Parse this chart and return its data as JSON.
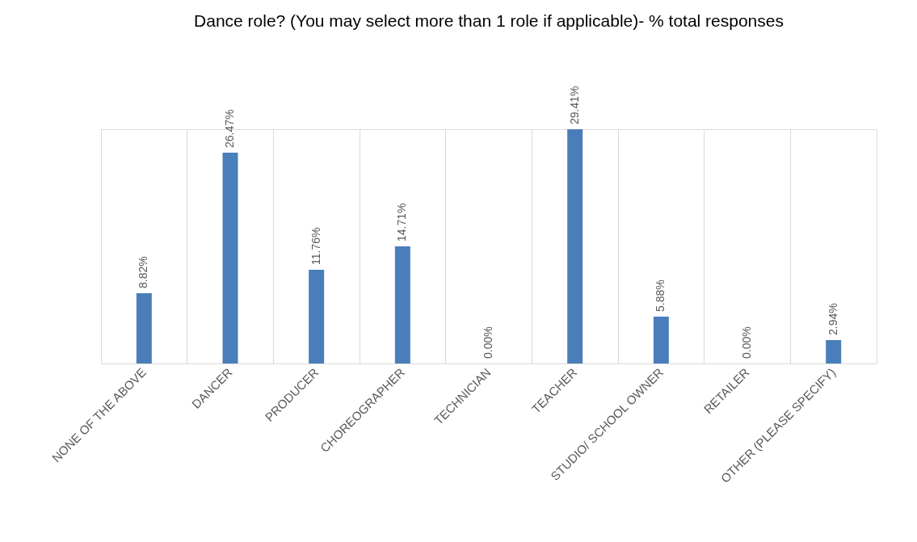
{
  "chart_data": {
    "type": "bar",
    "title": "Dance role? (You may select more than 1 role if applicable)- % total responses",
    "categories": [
      "NONE OF THE ABOVE",
      "DANCER",
      "PRODUCER",
      "CHOREOGRAPHER",
      "TECHNICIAN",
      "TEACHER",
      "STUDIO/ SCHOOL OWNER",
      "RETAILER",
      "OTHER (PLEASE SPECIFY)"
    ],
    "values": [
      8.82,
      26.47,
      11.76,
      14.71,
      0.0,
      29.41,
      5.88,
      0.0,
      2.94
    ],
    "value_labels": [
      "8.82%",
      "26.47%",
      "11.76%",
      "14.71%",
      "0.00%",
      "29.41%",
      "5.88%",
      "0.00%",
      "2.94%"
    ],
    "color": "#4a7ebb",
    "grid": "x"
  }
}
